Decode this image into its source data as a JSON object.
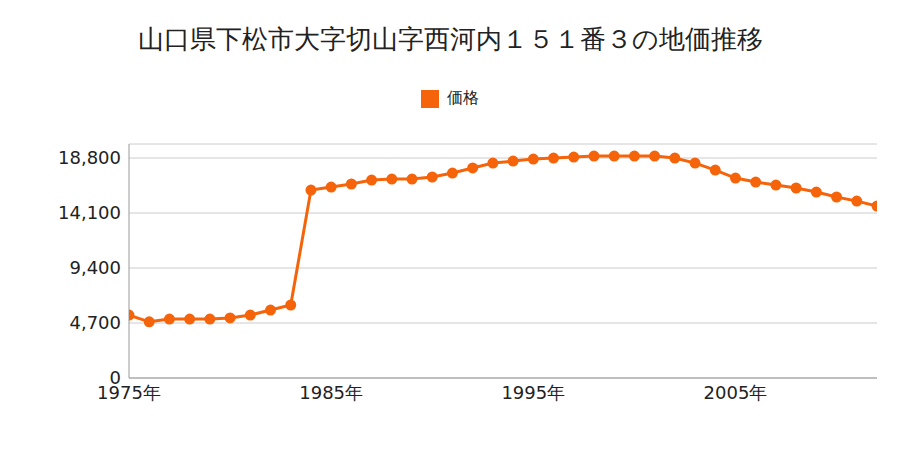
{
  "chart_data": {
    "type": "line",
    "title": "山口県下松市大字切山字西河内１５１番３の地価推移",
    "x": [
      1975,
      1976,
      1977,
      1978,
      1979,
      1980,
      1981,
      1982,
      1983,
      1984,
      1985,
      1986,
      1987,
      1988,
      1989,
      1990,
      1991,
      1992,
      1993,
      1994,
      1995,
      1996,
      1997,
      1998,
      1999,
      2000,
      2001,
      2002,
      2003,
      2004,
      2005,
      2006,
      2007,
      2008,
      2009,
      2010,
      2011,
      2012
    ],
    "series": [
      {
        "name": "価格",
        "color": "#f5640a",
        "marker": "circle",
        "values": [
          5380,
          4800,
          5040,
          5040,
          5040,
          5130,
          5380,
          5810,
          6240,
          16060,
          16320,
          16580,
          16920,
          17000,
          17000,
          17180,
          17520,
          17950,
          18370,
          18540,
          18710,
          18800,
          18880,
          18970,
          18970,
          18970,
          18970,
          18800,
          18370,
          17770,
          17090,
          16750,
          16490,
          16240,
          15890,
          15470,
          15120,
          14700
        ]
      }
    ],
    "xlim": [
      1975,
      2012
    ],
    "xticks": [
      {
        "value": 1975,
        "label": "1975年"
      },
      {
        "value": 1985,
        "label": "1985年"
      },
      {
        "value": 1995,
        "label": "1995年"
      },
      {
        "value": 2005,
        "label": "2005年"
      }
    ],
    "ylim": [
      0,
      20000
    ],
    "yticks": [
      0,
      {
        "value": 4700,
        "label": "4,700"
      },
      {
        "value": 9400,
        "label": "9,400"
      },
      {
        "value": 14100,
        "label": "14,100"
      },
      {
        "value": 18800,
        "label": "18,800"
      }
    ],
    "grid": true,
    "legend": "top"
  }
}
